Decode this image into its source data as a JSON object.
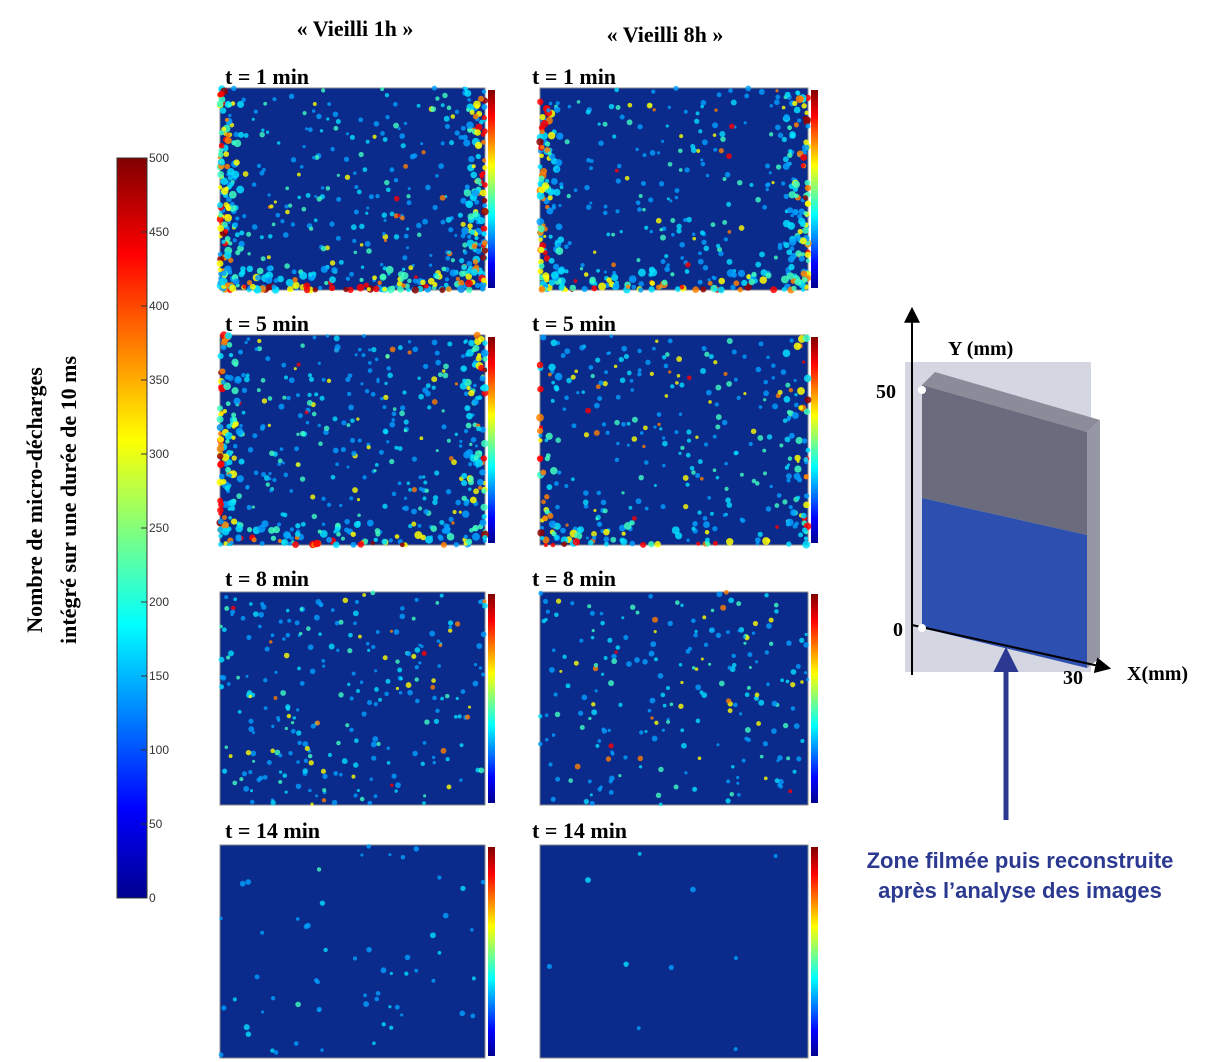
{
  "columns": [
    "« Vieilli 1h »",
    "« Vieilli 8h »"
  ],
  "panels": [
    [
      "t = 1 min",
      "t = 1 min"
    ],
    [
      "t = 5 min",
      "t = 5 min"
    ],
    [
      "t = 8 min",
      "t = 8 min"
    ],
    [
      "t = 14 min",
      "t = 14 min"
    ]
  ],
  "colorbar": {
    "label": [
      "Nombre de micro-décharges",
      "intégré sur une durée de 10 ms"
    ],
    "ticks": [
      0,
      50,
      100,
      150,
      200,
      250,
      300,
      350,
      400,
      450,
      500
    ]
  },
  "diagram": {
    "y_axis": "Y (mm)",
    "x_axis": "X(mm)",
    "y_top": "50",
    "origin": "0",
    "x_end": "30",
    "caption": [
      "Zone  filmée puis reconstruite",
      "après l’analyse des images"
    ]
  }
}
